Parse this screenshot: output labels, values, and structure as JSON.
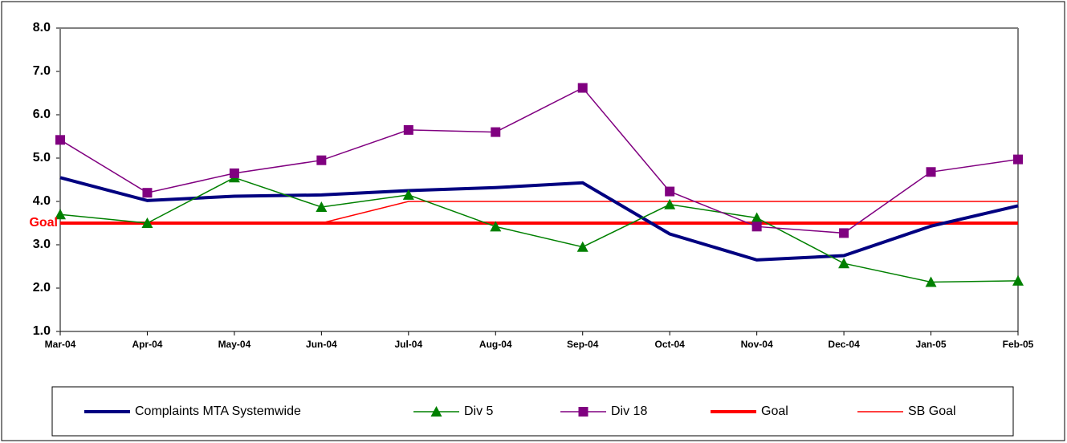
{
  "chart_data": {
    "type": "line",
    "categories": [
      "Mar-04",
      "Apr-04",
      "May-04",
      "Jun-04",
      "Jul-04",
      "Aug-04",
      "Sep-04",
      "Oct-04",
      "Nov-04",
      "Dec-04",
      "Jan-05",
      "Feb-05"
    ],
    "series": [
      {
        "name": "Complaints MTA Systemwide",
        "color": "#000080",
        "line_width": 4,
        "marker": null,
        "values": [
          4.55,
          4.02,
          4.12,
          4.15,
          4.25,
          4.32,
          4.43,
          3.25,
          2.65,
          2.75,
          3.43,
          3.9
        ]
      },
      {
        "name": "Div 5",
        "color": "#008000",
        "line_width": 1.5,
        "marker": "triangle",
        "values": [
          3.7,
          3.5,
          4.55,
          3.87,
          4.15,
          3.42,
          2.95,
          3.93,
          3.62,
          2.57,
          2.14,
          2.17
        ]
      },
      {
        "name": "Div 18",
        "color": "#800080",
        "line_width": 1.5,
        "marker": "square",
        "values": [
          5.42,
          4.2,
          4.65,
          4.95,
          5.65,
          5.6,
          6.62,
          4.23,
          3.42,
          3.27,
          4.68,
          4.97
        ]
      },
      {
        "name": "Goal",
        "color": "#ff0000",
        "line_width": 4,
        "marker": null,
        "values": [
          3.5,
          3.5,
          3.5,
          3.5,
          3.5,
          3.5,
          3.5,
          3.5,
          3.5,
          3.5,
          3.5,
          3.5
        ]
      },
      {
        "name": "SB Goal",
        "color": "#ff0000",
        "line_width": 1.5,
        "marker": null,
        "values": [
          3.5,
          3.5,
          3.5,
          3.5,
          4,
          4,
          4,
          4,
          4,
          4,
          4,
          4
        ]
      }
    ],
    "annotation": "Goal",
    "ylim": [
      1,
      8
    ],
    "yticks": [
      {
        "value": 1,
        "label": "1.0"
      },
      {
        "value": 2,
        "label": "2.0"
      },
      {
        "value": 3,
        "label": "3.0"
      },
      {
        "value": 4,
        "label": "4.0"
      },
      {
        "value": 5,
        "label": "5.0"
      },
      {
        "value": 6,
        "label": "6.0"
      },
      {
        "value": 7,
        "label": "7.0"
      },
      {
        "value": 8,
        "label": "8.0"
      }
    ]
  }
}
